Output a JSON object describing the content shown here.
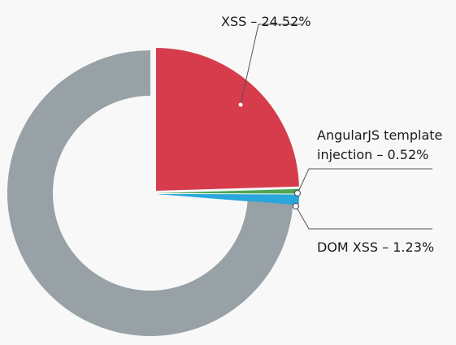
{
  "chart_data": {
    "type": "pie",
    "style": "exploded-donut",
    "slices": [
      {
        "label": "XSS – 24.52%",
        "value": 24.52,
        "color": "#d63c4c"
      },
      {
        "label": "AngularJS template injection – 0.52%",
        "value": 0.52,
        "color": "#4ea754"
      },
      {
        "label": "DOM XSS – 1.23%",
        "value": 1.23,
        "color": "#2aa6dc"
      },
      {
        "label": "",
        "value": 73.73,
        "color": "#97a1a6"
      }
    ],
    "annotations": [
      {
        "slice": 0,
        "lines": [
          "XSS – 24.52%"
        ]
      },
      {
        "slice": 1,
        "lines": [
          "AngularJS template",
          "injection – 0.52%"
        ]
      },
      {
        "slice": 2,
        "lines": [
          "DOM XSS – 1.23%"
        ]
      }
    ]
  }
}
